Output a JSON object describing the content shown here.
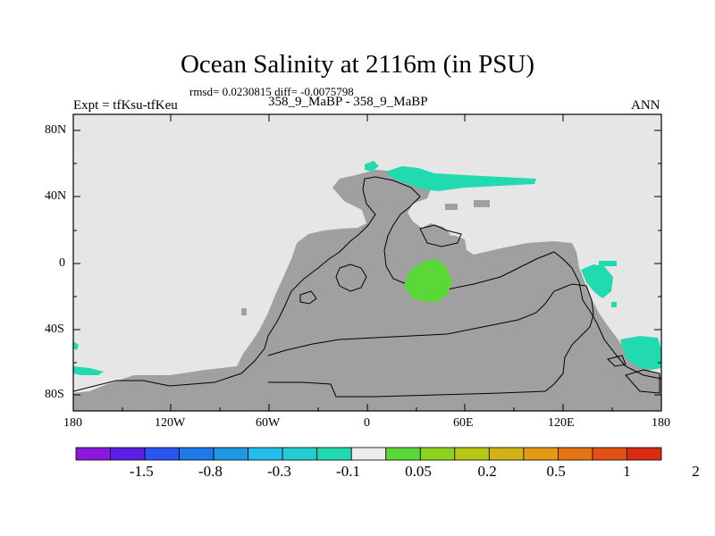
{
  "title": "Ocean Salinity at 2116m (in PSU)",
  "stats": "rmsd= 0.0230815 diff= -0.0075798",
  "expt": "Expt = tfKsu-tfKeu",
  "period": "358_9_MaBP - 358_9_MaBP",
  "season": "ANN",
  "map": {
    "lat_ticks": [
      "80N",
      "40N",
      "0",
      "40S",
      "80S"
    ],
    "lon_ticks": [
      "180",
      "120W",
      "60W",
      "0",
      "60E",
      "120E",
      "180"
    ],
    "ocean_color": "#e6e6e6",
    "land_color": "#a0a0a0"
  },
  "colorbar": {
    "colors": [
      "#8a16e0",
      "#5a20e6",
      "#2856f0",
      "#1e7ae8",
      "#1d99e6",
      "#22bde8",
      "#22ccd0",
      "#22dab0",
      "#ececec",
      "#5ad838",
      "#8cd21e",
      "#b4c814",
      "#d2b214",
      "#e49a14",
      "#e47414",
      "#e25014",
      "#dc2a12"
    ],
    "labels": [
      "-1.5",
      "-0.8",
      "-0.3",
      "-0.1",
      "0.05",
      "0.2",
      "0.5",
      "1",
      "2"
    ]
  }
}
